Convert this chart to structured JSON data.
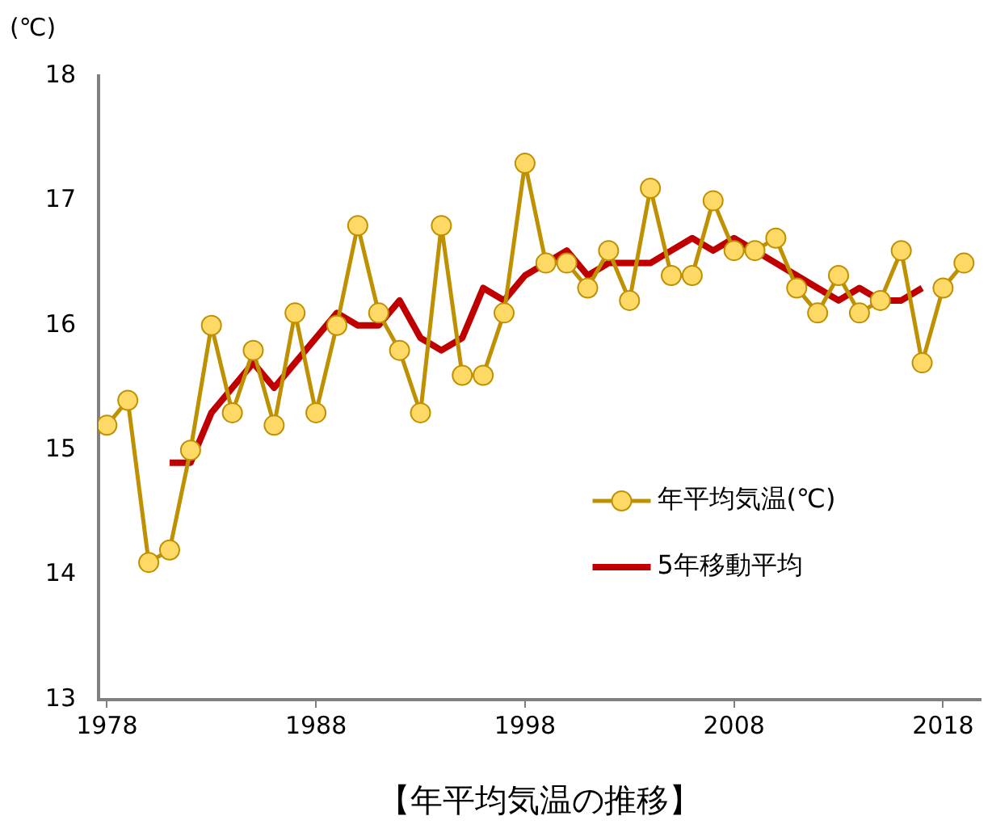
{
  "chart_data": {
    "type": "line",
    "title": "【年平均気温の推移】",
    "ylabel": "(℃)",
    "x": [
      1978,
      1979,
      1980,
      1981,
      1982,
      1983,
      1984,
      1985,
      1986,
      1987,
      1988,
      1989,
      1990,
      1991,
      1992,
      1993,
      1994,
      1995,
      1996,
      1997,
      1998,
      1999,
      2000,
      2001,
      2002,
      2003,
      2004,
      2005,
      2006,
      2007,
      2008,
      2009,
      2010,
      2011,
      2012,
      2013,
      2014,
      2015,
      2016,
      2017,
      2018,
      2019
    ],
    "series": [
      {
        "name": "年平均気温(℃)",
        "color": "#bf9000",
        "marker": "circle",
        "values": [
          15.2,
          15.4,
          14.1,
          14.2,
          15.0,
          16.0,
          15.3,
          15.8,
          15.2,
          16.1,
          15.3,
          16.0,
          16.8,
          16.1,
          15.8,
          15.3,
          16.8,
          15.6,
          15.6,
          16.1,
          17.3,
          16.5,
          16.5,
          16.3,
          16.6,
          16.2,
          17.1,
          16.4,
          16.4,
          17.0,
          16.6,
          16.6,
          16.7,
          16.3,
          16.1,
          16.4,
          16.1,
          16.2,
          16.6,
          15.7,
          16.3,
          16.5
        ]
      },
      {
        "name": "5年移動平均",
        "color": "#c00000",
        "marker": "none",
        "values": [
          null,
          null,
          null,
          14.9,
          14.9,
          15.3,
          15.5,
          15.7,
          15.5,
          15.7,
          15.9,
          16.1,
          16.0,
          16.0,
          16.2,
          15.9,
          15.8,
          15.9,
          16.3,
          16.2,
          16.4,
          16.5,
          16.6,
          16.4,
          16.5,
          16.5,
          16.5,
          16.6,
          16.7,
          16.6,
          16.7,
          16.6,
          16.5,
          16.4,
          16.3,
          16.2,
          16.3,
          16.2,
          16.2,
          16.3,
          null,
          null
        ]
      }
    ],
    "xlim": [
      1977.6,
      2019.8
    ],
    "xticks": [
      1978,
      1988,
      1998,
      2008,
      2018
    ],
    "ylim": [
      13,
      18
    ],
    "yticks": [
      13,
      14,
      15,
      16,
      17,
      18
    ],
    "grid": false,
    "legend": "right",
    "line_style": "solid"
  }
}
